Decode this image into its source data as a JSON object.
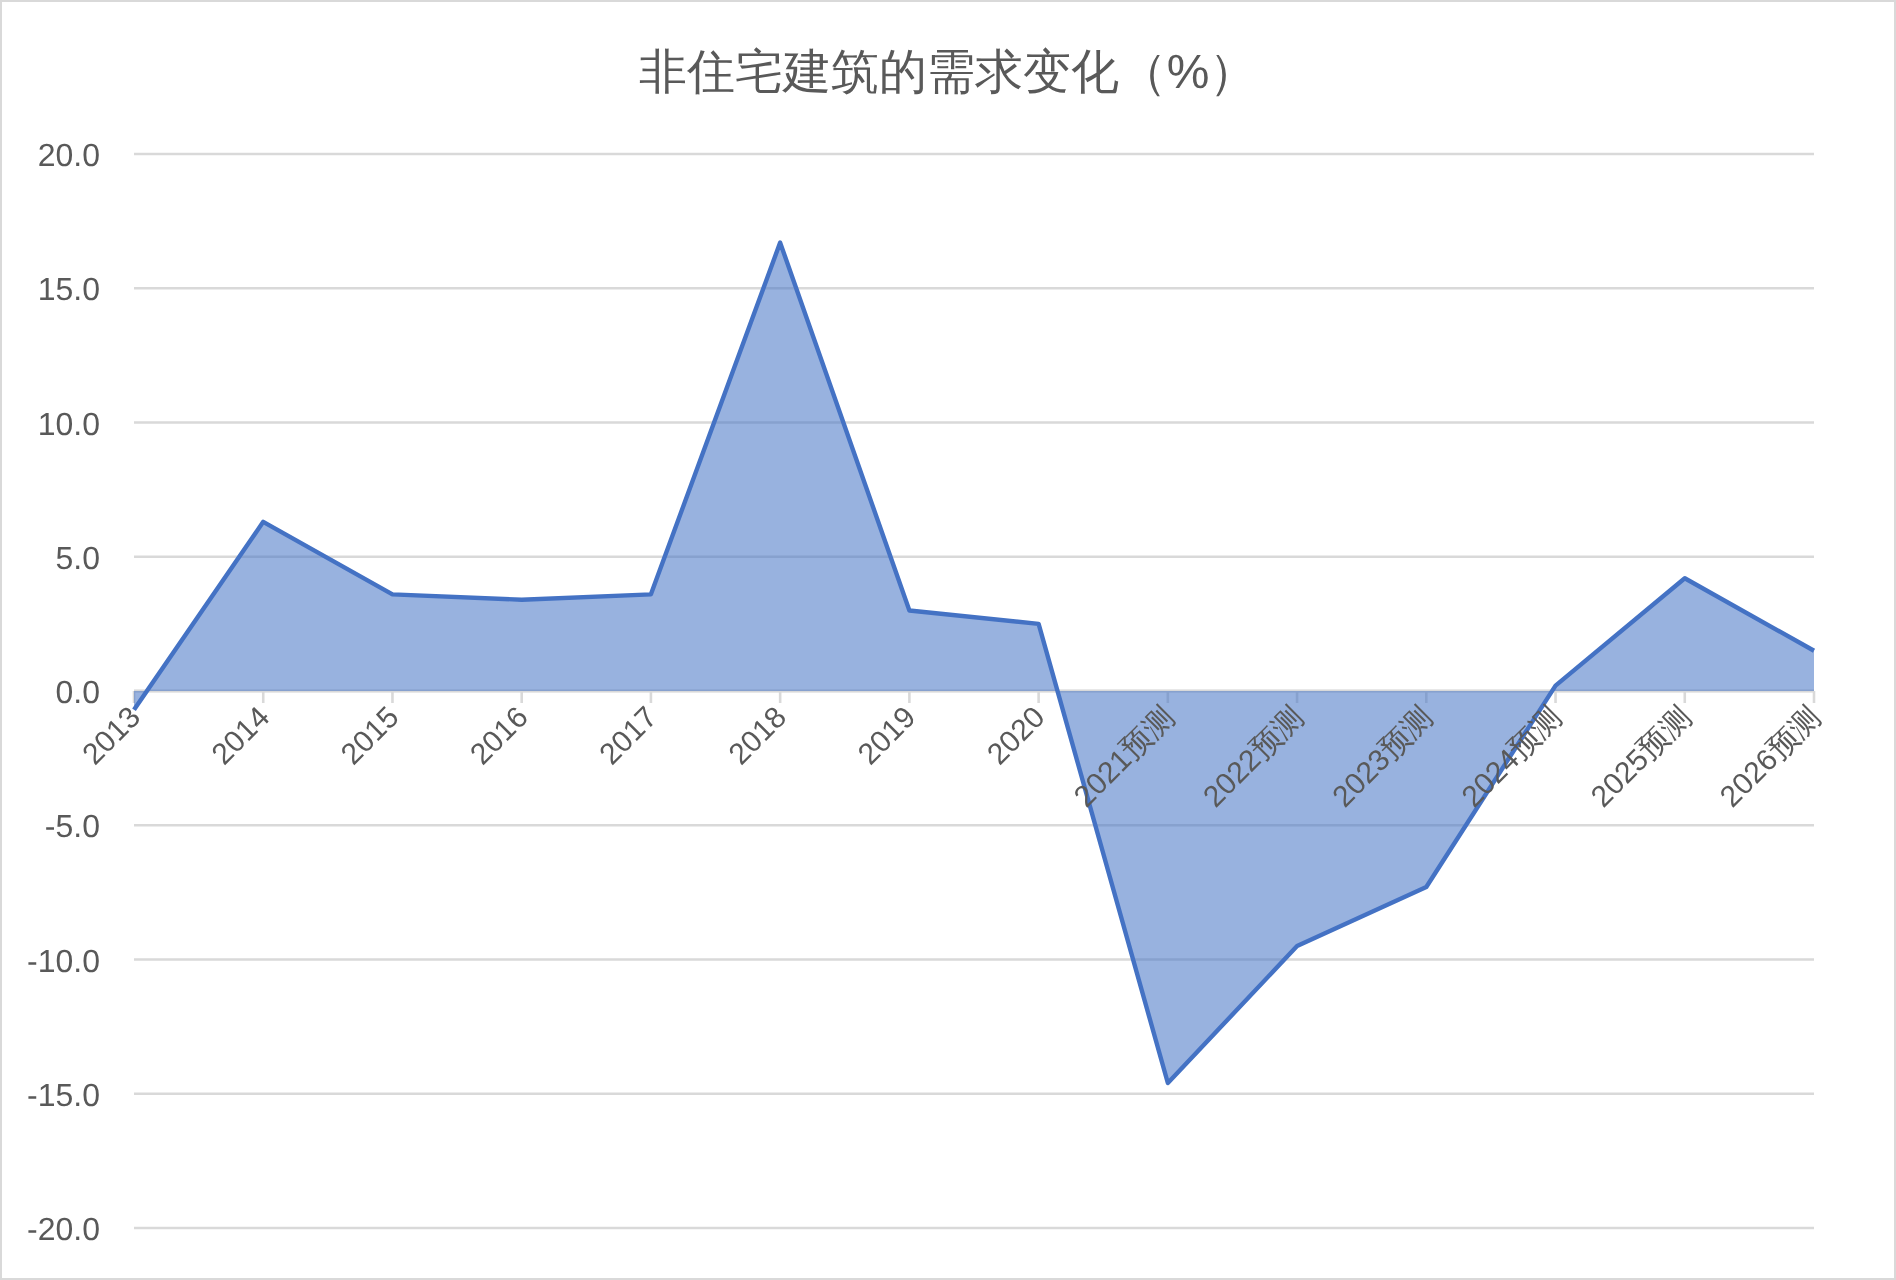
{
  "chart_data": {
    "type": "area",
    "title": "非住宅建筑的需求变化（%）",
    "categories": [
      "2013",
      "2014",
      "2015",
      "2016",
      "2017",
      "2018",
      "2019",
      "2020",
      "2021预测",
      "2022预测",
      "2023预测",
      "2024预测",
      "2025预测",
      "2026预测"
    ],
    "series": [
      {
        "color": "#4472c4",
        "values": [
          -0.7,
          6.3,
          3.6,
          3.4,
          3.6,
          16.7,
          3.0,
          2.5,
          -14.6,
          -9.5,
          -7.3,
          0.2,
          4.2,
          1.5
        ]
      }
    ],
    "ylim": [
      -20,
      20
    ],
    "yticks": [
      {
        "value": -20,
        "label": "-20.0"
      },
      {
        "value": -15,
        "label": "-15.0"
      },
      {
        "value": -10,
        "label": "-10.0"
      },
      {
        "value": -5,
        "label": "-5.0"
      },
      {
        "value": 0,
        "label": "0.0"
      },
      {
        "value": 5,
        "label": "5.0"
      },
      {
        "value": 10,
        "label": "10.0"
      },
      {
        "value": 15,
        "label": "15.0"
      },
      {
        "value": 20,
        "label": "20.0"
      }
    ],
    "grid": "y"
  }
}
